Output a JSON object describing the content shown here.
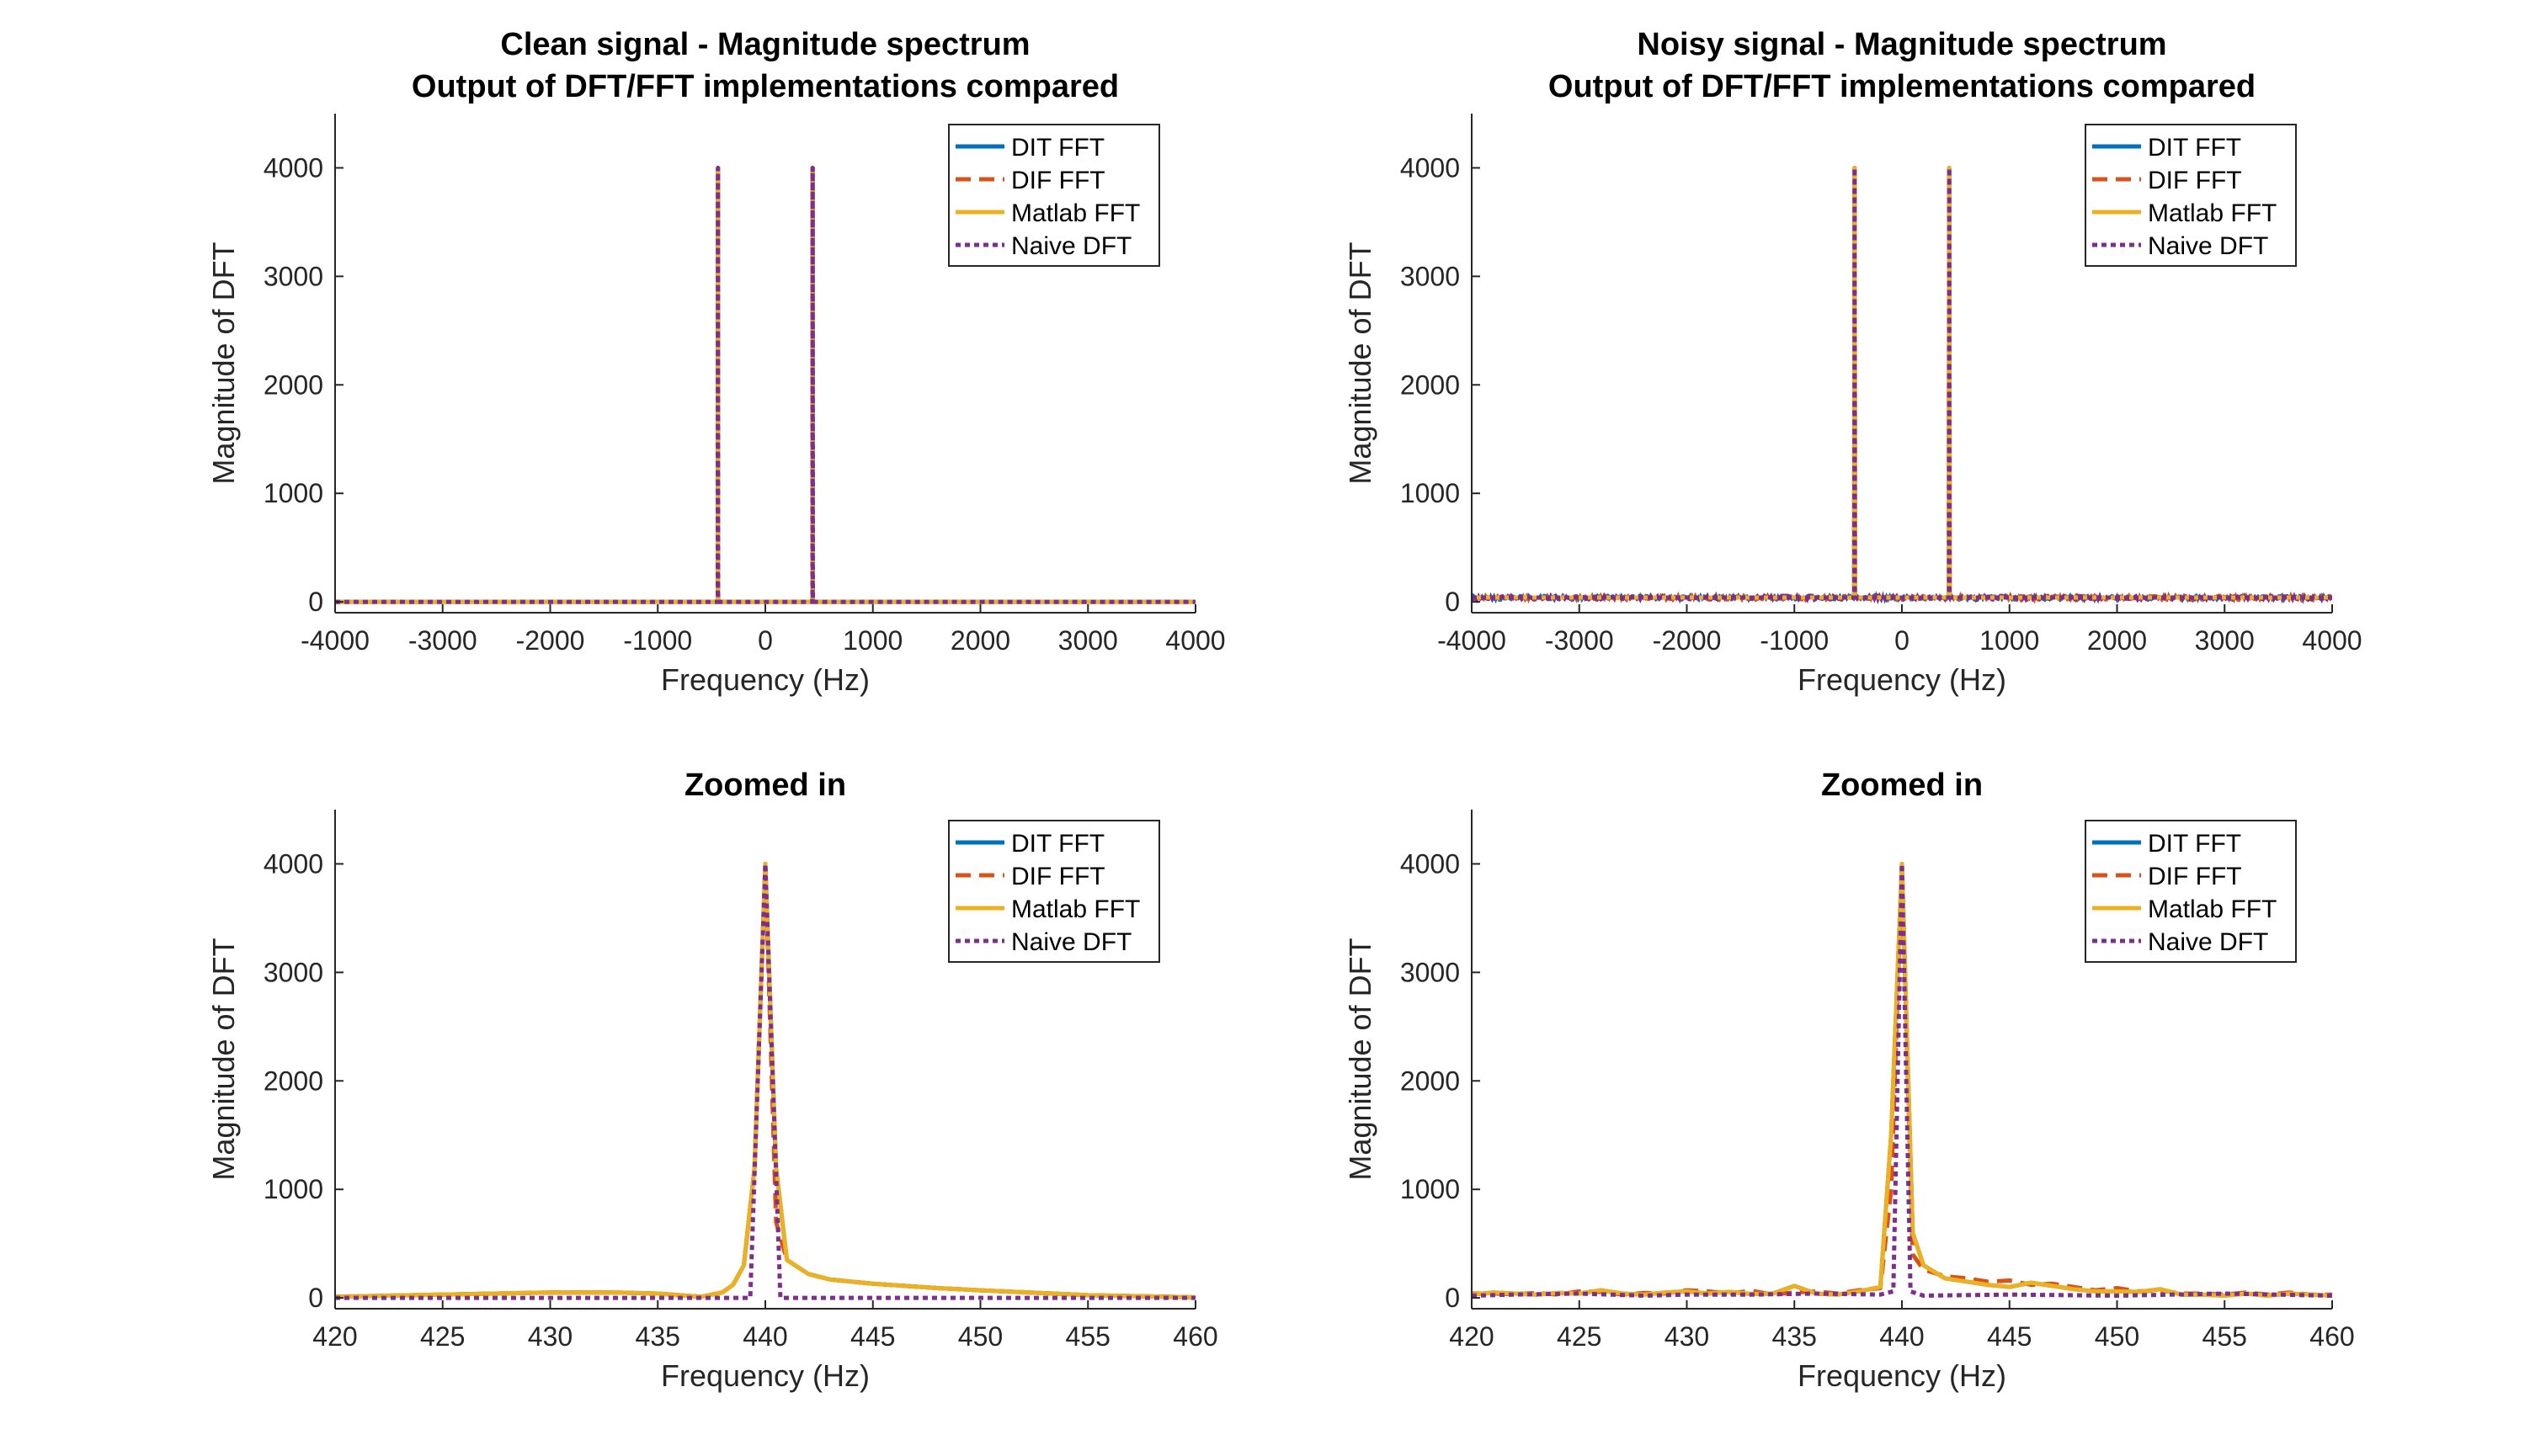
{
  "colors": {
    "dit": "#0072BD",
    "dif": "#D95319",
    "matlab": "#EDB120",
    "naive": "#7E2F8E",
    "axis": "#262626"
  },
  "chart_data": [
    {
      "type": "line",
      "title_lines": [
        "Clean signal - Magnitude spectrum",
        "Output of DFT/FFT implementations compared"
      ],
      "xlabel": "Frequency (Hz)",
      "ylabel": "Magnitude of DFT",
      "xlim": [
        -4000,
        4000
      ],
      "ylim": [
        -100,
        4500
      ],
      "xticks": [
        -4000,
        -3000,
        -2000,
        -1000,
        0,
        1000,
        2000,
        3000,
        4000
      ],
      "yticks": [
        0,
        1000,
        2000,
        3000,
        4000
      ],
      "legend": [
        "DIT FFT",
        "DIF FFT",
        "Matlab FFT",
        "Naive DFT"
      ],
      "legend_position": "top-right",
      "series": [
        {
          "name": "DIT FFT",
          "x": [
            -4000,
            -445,
            -441,
            -440,
            -439,
            -435,
            435,
            439,
            440,
            441,
            445,
            4000
          ],
          "y": [
            0,
            0,
            60,
            4000,
            60,
            0,
            0,
            60,
            4000,
            60,
            0,
            0
          ]
        },
        {
          "name": "DIF FFT",
          "x": [
            -4000,
            -445,
            -441,
            -440,
            -439,
            -435,
            435,
            439,
            440,
            441,
            445,
            4000
          ],
          "y": [
            0,
            0,
            60,
            4000,
            60,
            0,
            0,
            60,
            4000,
            60,
            0,
            0
          ]
        },
        {
          "name": "Matlab FFT",
          "x": [
            -4000,
            -445,
            -441,
            -440,
            -439,
            -435,
            435,
            439,
            440,
            441,
            445,
            4000
          ],
          "y": [
            0,
            0,
            60,
            4000,
            60,
            0,
            0,
            60,
            4000,
            60,
            0,
            0
          ]
        },
        {
          "name": "Naive DFT",
          "x": [
            -4000,
            -442,
            -440,
            -438,
            438,
            440,
            442,
            4000
          ],
          "y": [
            0,
            0,
            4000,
            0,
            0,
            4000,
            0,
            0
          ]
        }
      ]
    },
    {
      "type": "line",
      "title_lines": [
        "Noisy signal - Magnitude spectrum",
        "Output of DFT/FFT implementations compared"
      ],
      "xlabel": "Frequency (Hz)",
      "ylabel": "Magnitude of DFT",
      "xlim": [
        -4000,
        4000
      ],
      "ylim": [
        -100,
        4500
      ],
      "xticks": [
        -4000,
        -3000,
        -2000,
        -1000,
        0,
        1000,
        2000,
        3000,
        4000
      ],
      "yticks": [
        0,
        1000,
        2000,
        3000,
        4000
      ],
      "legend": [
        "DIT FFT",
        "DIF FFT",
        "Matlab FFT",
        "Naive DFT"
      ],
      "legend_position": "top-right",
      "noise_floor": 40,
      "series": [
        {
          "name": "DIT FFT",
          "x": [
            -4000,
            -445,
            -440,
            -435,
            435,
            440,
            445,
            4000
          ],
          "y": [
            40,
            40,
            4000,
            40,
            40,
            4000,
            40,
            40
          ]
        },
        {
          "name": "DIF FFT",
          "x": [
            -4000,
            -445,
            -440,
            -435,
            435,
            440,
            445,
            4000
          ],
          "y": [
            40,
            40,
            4000,
            40,
            40,
            4000,
            40,
            40
          ]
        },
        {
          "name": "Matlab FFT",
          "x": [
            -4000,
            -445,
            -440,
            -435,
            435,
            440,
            445,
            4000
          ],
          "y": [
            40,
            40,
            4000,
            40,
            40,
            4000,
            40,
            40
          ]
        },
        {
          "name": "Naive DFT",
          "x": [
            -4000,
            -442,
            -440,
            -438,
            438,
            440,
            442,
            4000
          ],
          "y": [
            40,
            40,
            4000,
            40,
            40,
            4000,
            40,
            40
          ]
        }
      ]
    },
    {
      "type": "line",
      "title_lines": [
        "Zoomed in"
      ],
      "xlabel": "Frequency (Hz)",
      "ylabel": "Magnitude of DFT",
      "xlim": [
        420,
        460
      ],
      "ylim": [
        -100,
        4500
      ],
      "xticks": [
        420,
        425,
        430,
        435,
        440,
        445,
        450,
        455,
        460
      ],
      "yticks": [
        0,
        1000,
        2000,
        3000,
        4000
      ],
      "legend": [
        "DIT FFT",
        "DIF FFT",
        "Matlab FFT",
        "Naive DFT"
      ],
      "legend_position": "top-right",
      "series": [
        {
          "name": "DIT FFT",
          "x": [
            420,
            425,
            430,
            433,
            435,
            437,
            438,
            438.5,
            439,
            439.5,
            440,
            440.5,
            441,
            442,
            443,
            445,
            448,
            450,
            455,
            460
          ],
          "y": [
            10,
            30,
            50,
            50,
            40,
            10,
            50,
            120,
            300,
            1200,
            4000,
            1200,
            350,
            220,
            170,
            130,
            90,
            70,
            25,
            5
          ]
        },
        {
          "name": "DIF FFT",
          "x": [
            420,
            425,
            430,
            433,
            435,
            437,
            438,
            438.5,
            439,
            439.5,
            440,
            440.5,
            441,
            442,
            443,
            445,
            448,
            450,
            455,
            460
          ],
          "y": [
            10,
            30,
            50,
            50,
            40,
            10,
            50,
            120,
            300,
            1200,
            4000,
            700,
            350,
            220,
            170,
            130,
            90,
            70,
            25,
            5
          ]
        },
        {
          "name": "Matlab FFT",
          "x": [
            420,
            425,
            430,
            433,
            435,
            437,
            438,
            438.5,
            439,
            439.5,
            440,
            440.5,
            441,
            442,
            443,
            445,
            448,
            450,
            455,
            460
          ],
          "y": [
            10,
            30,
            50,
            50,
            40,
            10,
            50,
            120,
            300,
            1200,
            4000,
            1200,
            350,
            220,
            170,
            130,
            90,
            70,
            25,
            5
          ]
        },
        {
          "name": "Naive DFT",
          "x": [
            420,
            439.3,
            440,
            440.7,
            460
          ],
          "y": [
            0,
            0,
            4000,
            0,
            0
          ]
        }
      ]
    },
    {
      "type": "line",
      "title_lines": [
        "Zoomed in"
      ],
      "xlabel": "Frequency (Hz)",
      "ylabel": "Magnitude of DFT",
      "xlim": [
        420,
        460
      ],
      "ylim": [
        -100,
        4500
      ],
      "xticks": [
        420,
        425,
        430,
        435,
        440,
        445,
        450,
        455,
        460
      ],
      "yticks": [
        0,
        1000,
        2000,
        3000,
        4000
      ],
      "legend": [
        "DIT FFT",
        "DIF FFT",
        "Matlab FFT",
        "Naive DFT"
      ],
      "legend_position": "top-right",
      "series": [
        {
          "name": "DIT FFT",
          "x": [
            420,
            421,
            422,
            423,
            424,
            425,
            426,
            427,
            428,
            429,
            430,
            431,
            432,
            433,
            434,
            435,
            436,
            437,
            438,
            439,
            439.5,
            440,
            440.5,
            441,
            442,
            443,
            444,
            445,
            446,
            447,
            448,
            449,
            450,
            451,
            452,
            453,
            454,
            455,
            456,
            457,
            458,
            459,
            460
          ],
          "y": [
            30,
            50,
            40,
            30,
            45,
            40,
            70,
            40,
            30,
            50,
            60,
            40,
            55,
            35,
            40,
            110,
            40,
            30,
            60,
            100,
            1500,
            4000,
            600,
            300,
            180,
            150,
            120,
            100,
            140,
            110,
            80,
            60,
            60,
            55,
            80,
            30,
            30,
            20,
            40,
            20,
            40,
            30,
            20
          ]
        },
        {
          "name": "DIF FFT",
          "x": [
            420,
            421,
            422,
            423,
            424,
            425,
            426,
            427,
            428,
            429,
            430,
            431,
            432,
            433,
            434,
            435,
            436,
            437,
            438,
            439,
            439.5,
            440,
            440.5,
            441,
            442,
            443,
            444,
            445,
            446,
            447,
            448,
            449,
            450,
            451,
            452,
            453,
            454,
            455,
            456,
            457,
            458,
            459,
            460
          ],
          "y": [
            40,
            40,
            35,
            45,
            30,
            60,
            55,
            30,
            45,
            40,
            70,
            60,
            40,
            65,
            30,
            50,
            60,
            40,
            70,
            90,
            1000,
            4000,
            400,
            260,
            200,
            180,
            150,
            160,
            120,
            130,
            100,
            70,
            90,
            60,
            70,
            40,
            40,
            30,
            50,
            30,
            50,
            30,
            30
          ]
        },
        {
          "name": "Matlab FFT",
          "x": [
            420,
            421,
            422,
            423,
            424,
            425,
            426,
            427,
            428,
            429,
            430,
            431,
            432,
            433,
            434,
            435,
            436,
            437,
            438,
            439,
            439.5,
            440,
            440.5,
            441,
            442,
            443,
            444,
            445,
            446,
            447,
            448,
            449,
            450,
            451,
            452,
            453,
            454,
            455,
            456,
            457,
            458,
            459,
            460
          ],
          "y": [
            30,
            50,
            40,
            30,
            45,
            40,
            70,
            40,
            30,
            50,
            60,
            40,
            55,
            35,
            40,
            110,
            40,
            30,
            60,
            100,
            1500,
            4000,
            600,
            300,
            180,
            150,
            120,
            100,
            140,
            110,
            80,
            60,
            60,
            55,
            80,
            30,
            30,
            20,
            40,
            20,
            40,
            30,
            20
          ]
        },
        {
          "name": "Naive DFT",
          "x": [
            420,
            422,
            425,
            428,
            430,
            433,
            436,
            439,
            439.6,
            440,
            440.4,
            441,
            445,
            450,
            455,
            460
          ],
          "y": [
            20,
            30,
            40,
            20,
            30,
            30,
            40,
            30,
            60,
            4000,
            60,
            20,
            30,
            20,
            40,
            20
          ]
        }
      ]
    }
  ]
}
